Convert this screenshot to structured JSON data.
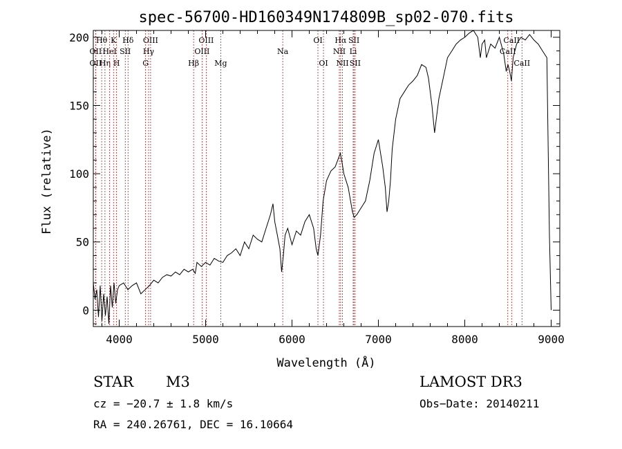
{
  "chart_data": {
    "type": "line",
    "title": "spec-56700-HD160349N174809B_sp02-070.fits",
    "xlabel": "Wavelength (Å)",
    "ylabel": "Flux (relative)",
    "xlim": [
      3700,
      9100
    ],
    "ylim": [
      -12,
      205
    ],
    "xticks": [
      4000,
      5000,
      6000,
      7000,
      8000,
      9000
    ],
    "yticks": [
      0,
      50,
      100,
      150,
      200
    ],
    "series": [
      {
        "name": "flux",
        "x": [
          3700,
          3720,
          3740,
          3760,
          3780,
          3800,
          3820,
          3840,
          3860,
          3880,
          3900,
          3920,
          3940,
          3960,
          3980,
          4000,
          4050,
          4100,
          4150,
          4200,
          4250,
          4300,
          4350,
          4400,
          4450,
          4500,
          4550,
          4600,
          4650,
          4700,
          4750,
          4800,
          4850,
          4880,
          4900,
          4950,
          5000,
          5050,
          5100,
          5150,
          5200,
          5250,
          5300,
          5350,
          5400,
          5450,
          5500,
          5550,
          5600,
          5650,
          5700,
          5750,
          5780,
          5800,
          5830,
          5860,
          5880,
          5900,
          5920,
          5950,
          6000,
          6050,
          6100,
          6150,
          6200,
          6250,
          6280,
          6300,
          6330,
          6360,
          6400,
          6450,
          6500,
          6530,
          6560,
          6580,
          6600,
          6650,
          6700,
          6720,
          6750,
          6800,
          6850,
          6900,
          6950,
          7000,
          7050,
          7080,
          7100,
          7120,
          7140,
          7160,
          7200,
          7250,
          7300,
          7350,
          7400,
          7450,
          7500,
          7550,
          7580,
          7620,
          7650,
          7680,
          7700,
          7750,
          7800,
          7850,
          7900,
          7950,
          8000,
          8050,
          8100,
          8150,
          8180,
          8200,
          8230,
          8250,
          8300,
          8350,
          8400,
          8450,
          8480,
          8500,
          8520,
          8540,
          8560,
          8600,
          8650,
          8700,
          8750,
          8800,
          8850,
          8900,
          8950,
          8980,
          9000
        ],
        "y": [
          20,
          8,
          15,
          -5,
          18,
          -8,
          12,
          -4,
          10,
          -10,
          18,
          2,
          20,
          5,
          15,
          18,
          20,
          15,
          18,
          20,
          12,
          15,
          18,
          22,
          20,
          24,
          26,
          25,
          28,
          26,
          30,
          28,
          30,
          27,
          35,
          32,
          35,
          33,
          38,
          36,
          35,
          40,
          42,
          45,
          40,
          50,
          45,
          55,
          52,
          50,
          60,
          70,
          78,
          65,
          55,
          45,
          28,
          40,
          55,
          60,
          48,
          58,
          55,
          65,
          70,
          60,
          45,
          40,
          55,
          80,
          95,
          102,
          105,
          110,
          115,
          108,
          100,
          90,
          72,
          68,
          70,
          75,
          80,
          95,
          115,
          125,
          105,
          90,
          72,
          80,
          95,
          118,
          140,
          155,
          160,
          165,
          168,
          172,
          180,
          178,
          170,
          150,
          130,
          145,
          155,
          170,
          185,
          190,
          195,
          198,
          200,
          203,
          205,
          200,
          185,
          195,
          198,
          185,
          195,
          192,
          200,
          188,
          175,
          180,
          175,
          168,
          185,
          195,
          200,
          198,
          202,
          198,
          195,
          190,
          185,
          55,
          0
        ]
      }
    ],
    "lines": [
      {
        "label": "Hθ",
        "x": 3797,
        "row": 1
      },
      {
        "label": "OII",
        "x": 3727,
        "row": 2
      },
      {
        "label": "OII",
        "x": 3727,
        "row": 3
      },
      {
        "label": "Hη",
        "x": 3835,
        "row": 3
      },
      {
        "label": "K",
        "x": 3934,
        "row": 1
      },
      {
        "label": "HeI",
        "x": 3889,
        "row": 2
      },
      {
        "label": "H",
        "x": 3969,
        "row": 3
      },
      {
        "label": "Hδ",
        "x": 4102,
        "row": 1
      },
      {
        "label": "SII",
        "x": 4070,
        "row": 2
      },
      {
        "label": "OIII",
        "x": 4363,
        "row": 1
      },
      {
        "label": "Hγ",
        "x": 4340,
        "row": 2
      },
      {
        "label": "G",
        "x": 4305,
        "row": 3
      },
      {
        "label": "OIII",
        "x": 5007,
        "row": 1
      },
      {
        "label": "OIII",
        "x": 4959,
        "row": 2
      },
      {
        "label": "Hβ",
        "x": 4861,
        "row": 3
      },
      {
        "label": "Mg",
        "x": 5175,
        "row": 3
      },
      {
        "label": "Na",
        "x": 5893,
        "row": 2
      },
      {
        "label": "OI",
        "x": 6300,
        "row": 1
      },
      {
        "label": "OI",
        "x": 6364,
        "row": 3
      },
      {
        "label": "Hα",
        "x": 6563,
        "row": 1
      },
      {
        "label": "NII",
        "x": 6548,
        "row": 2
      },
      {
        "label": "NII",
        "x": 6584,
        "row": 3
      },
      {
        "label": "SII",
        "x": 6717,
        "row": 1
      },
      {
        "label": "Li",
        "x": 6708,
        "row": 2
      },
      {
        "label": "SII",
        "x": 6731,
        "row": 3
      },
      {
        "label": "CaII",
        "x": 8542,
        "row": 1
      },
      {
        "label": "CaII",
        "x": 8498,
        "row": 2
      },
      {
        "label": "CaII",
        "x": 8662,
        "row": 3
      }
    ]
  },
  "info": {
    "object_class": "STAR",
    "subclass": "M3",
    "survey": "LAMOST DR3",
    "cz": "cz = −20.7 ± 1.8 km/s",
    "obs_date": "Obs−Date: 20140211",
    "coords": "RA = 240.26761, DEC =  16.10664"
  },
  "colors": {
    "line_marker": "#b02020",
    "axis": "#000000",
    "spectrum": "#000000"
  }
}
